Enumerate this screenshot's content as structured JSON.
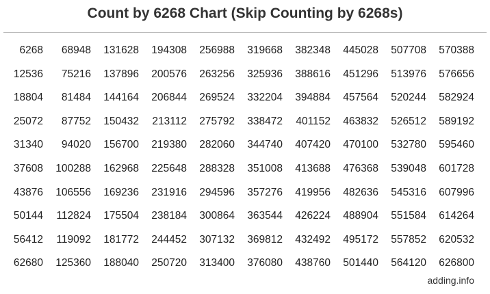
{
  "title": "Count by 6268 Chart (Skip Counting by 6268s)",
  "rows": [
    [
      "6268",
      "68948",
      "131628",
      "194308",
      "256988",
      "319668",
      "382348",
      "445028",
      "507708",
      "570388"
    ],
    [
      "12536",
      "75216",
      "137896",
      "200576",
      "263256",
      "325936",
      "388616",
      "451296",
      "513976",
      "576656"
    ],
    [
      "18804",
      "81484",
      "144164",
      "206844",
      "269524",
      "332204",
      "394884",
      "457564",
      "520244",
      "582924"
    ],
    [
      "25072",
      "87752",
      "150432",
      "213112",
      "275792",
      "338472",
      "401152",
      "463832",
      "526512",
      "589192"
    ],
    [
      "31340",
      "94020",
      "156700",
      "219380",
      "282060",
      "344740",
      "407420",
      "470100",
      "532780",
      "595460"
    ],
    [
      "37608",
      "100288",
      "162968",
      "225648",
      "288328",
      "351008",
      "413688",
      "476368",
      "539048",
      "601728"
    ],
    [
      "43876",
      "106556",
      "169236",
      "231916",
      "294596",
      "357276",
      "419956",
      "482636",
      "545316",
      "607996"
    ],
    [
      "50144",
      "112824",
      "175504",
      "238184",
      "300864",
      "363544",
      "426224",
      "488904",
      "551584",
      "614264"
    ],
    [
      "56412",
      "119092",
      "181772",
      "244452",
      "307132",
      "369812",
      "432492",
      "495172",
      "557852",
      "620532"
    ],
    [
      "62680",
      "125360",
      "188040",
      "250720",
      "313400",
      "376080",
      "438760",
      "501440",
      "564120",
      "626800"
    ]
  ],
  "footer": "adding.info"
}
